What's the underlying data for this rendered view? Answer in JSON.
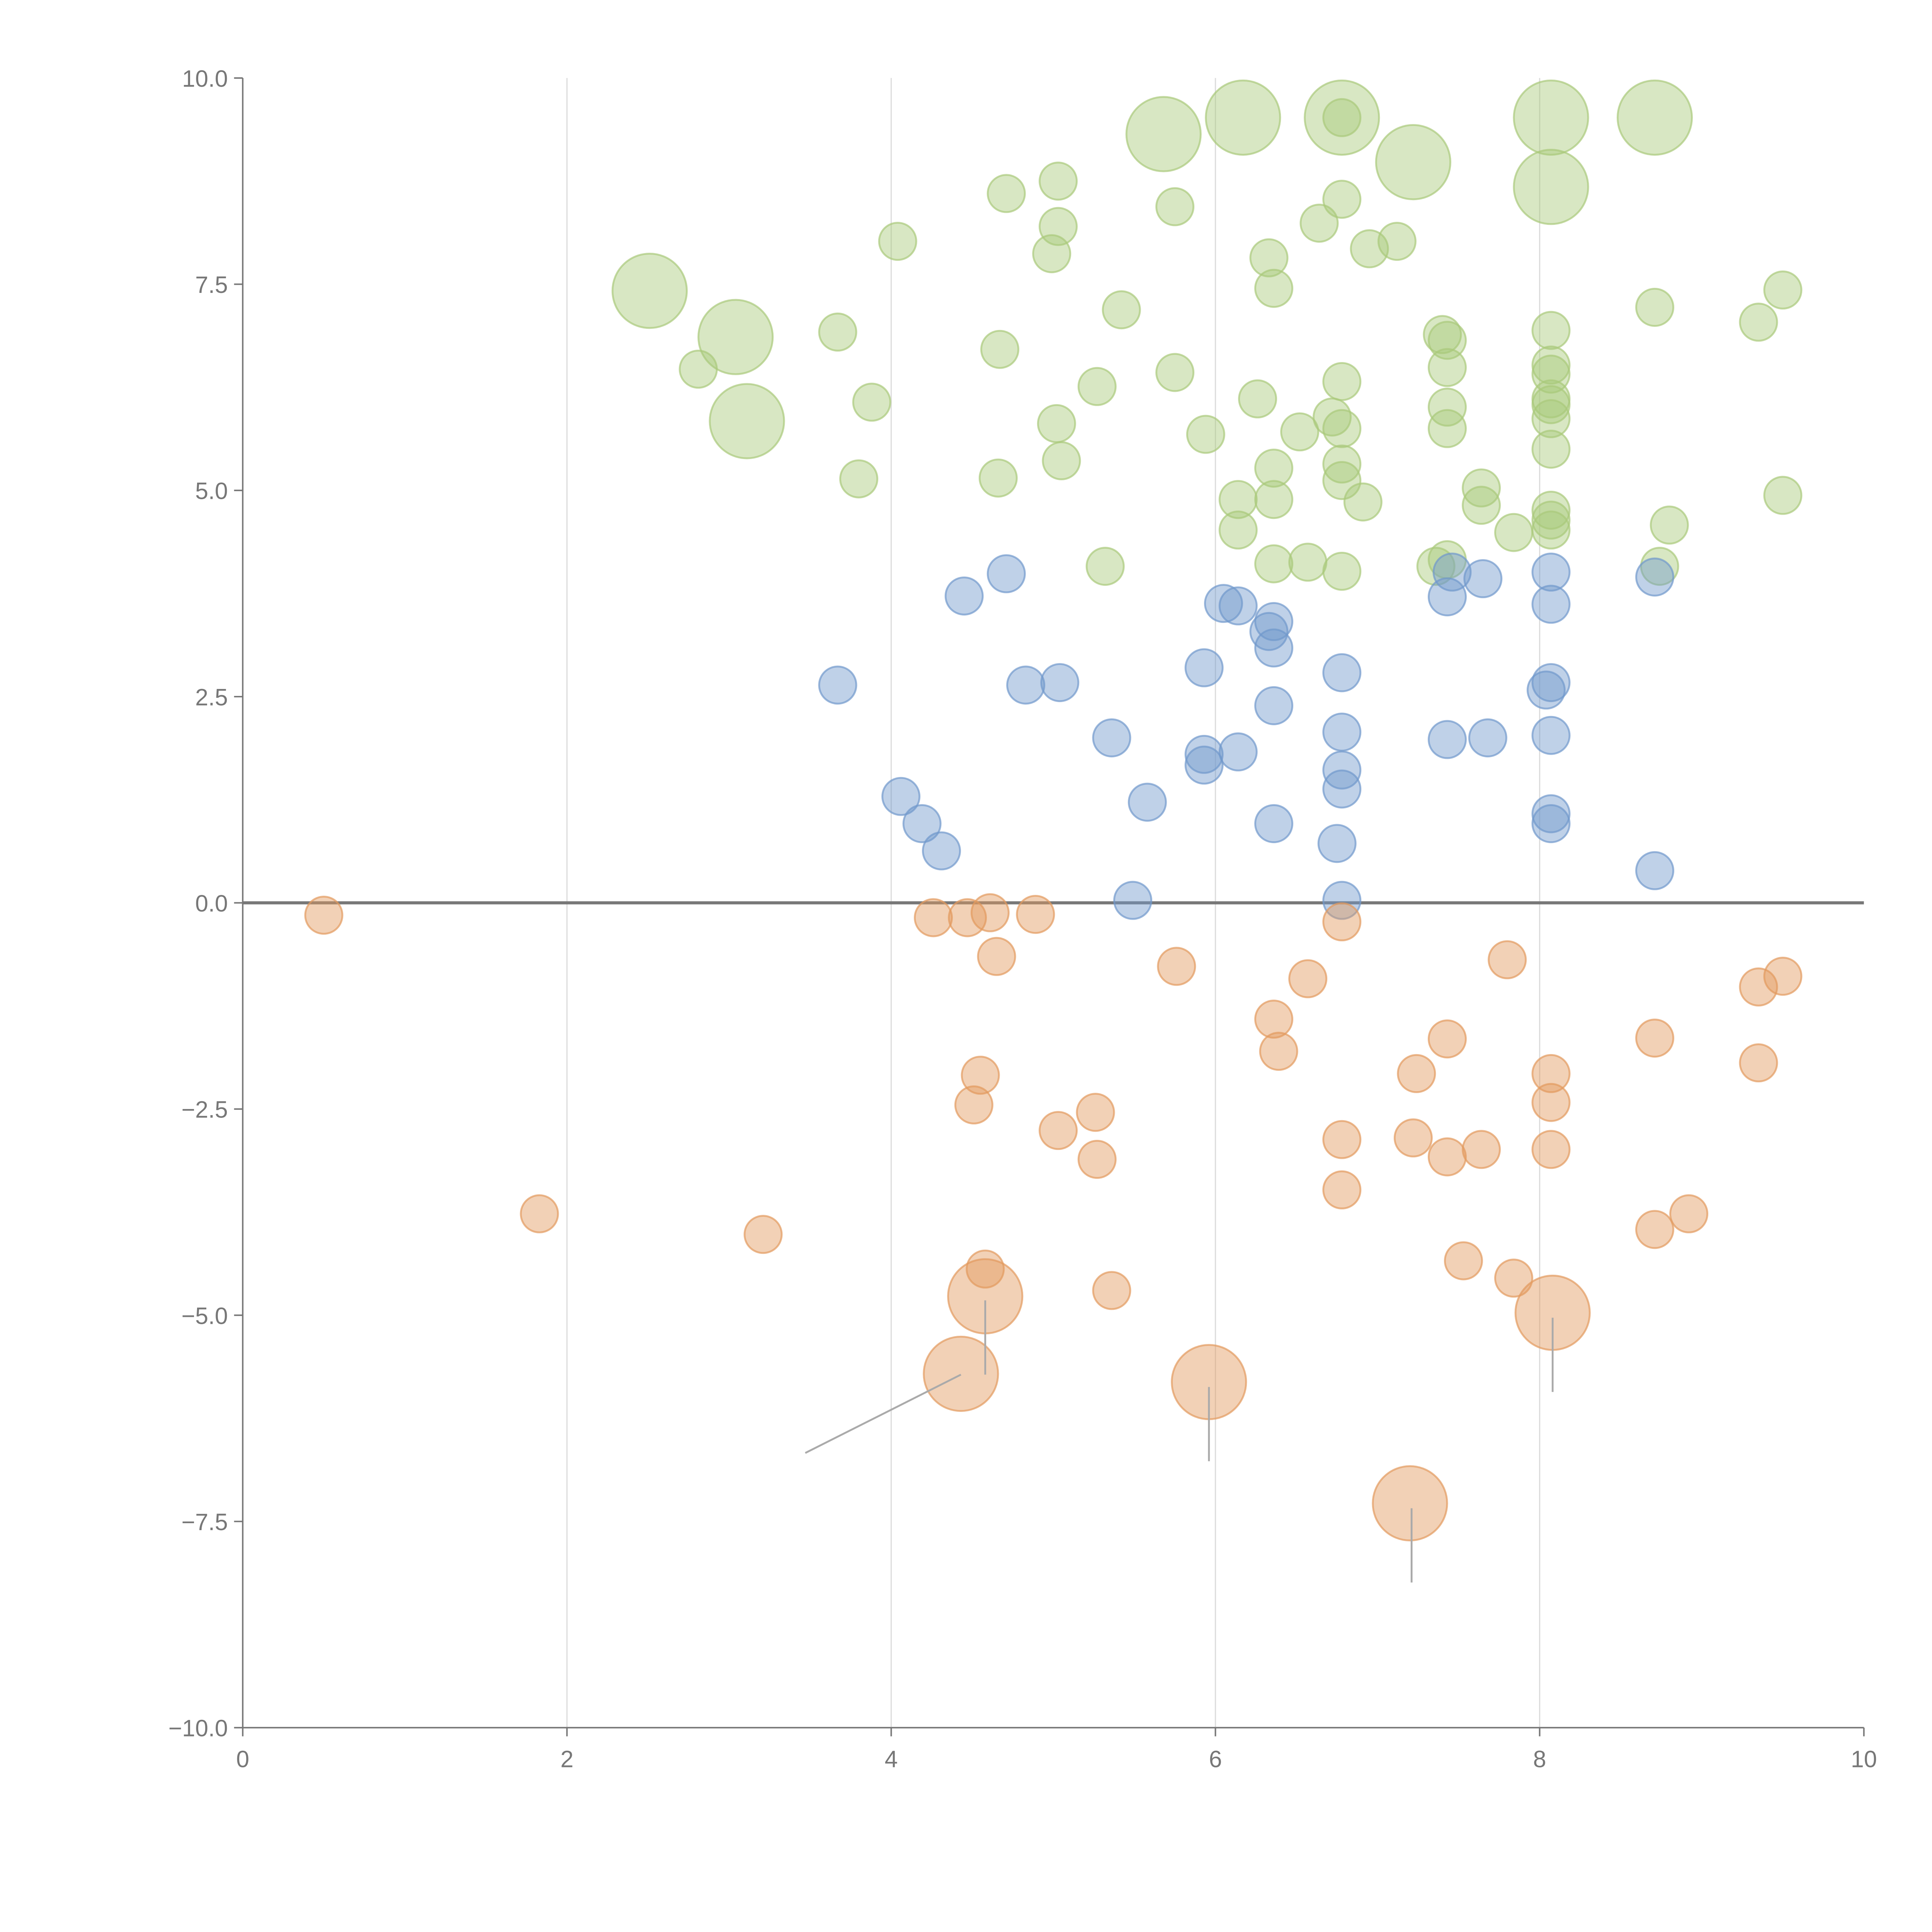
{
  "chart_data": {
    "type": "scatter",
    "title": "",
    "xlabel": "",
    "ylabel": "",
    "xlim": [
      0,
      10
    ],
    "ylim": [
      -10,
      10
    ],
    "grid": "vertical",
    "x_ticks": [
      0,
      2,
      4,
      6,
      8,
      10
    ],
    "x_tick_labels": [
      "0",
      "2",
      "4",
      "6",
      "8",
      "10"
    ],
    "y_ticks": [
      10,
      7.5,
      5,
      2.5,
      0,
      -2.5,
      -5,
      -7.5,
      -10
    ],
    "y_tick_labels": [
      "10.0",
      "7.5",
      "5.0",
      "2.5",
      "0.0",
      "−2.5",
      "−5.0",
      "−7.5",
      "−10.0"
    ],
    "reference_line_y": 0,
    "series": [
      {
        "color": "#a9c97a",
        "points": [
          [
            2.81,
            6.47
          ],
          [
            3.67,
            6.92
          ],
          [
            3.88,
            6.07
          ],
          [
            3.8,
            5.14
          ],
          [
            4.04,
            8.02
          ],
          [
            4.71,
            8.6
          ],
          [
            5.03,
            8.75
          ],
          [
            5.03,
            8.2
          ],
          [
            4.99,
            7.87
          ],
          [
            4.67,
            6.71
          ],
          [
            4.66,
            5.15
          ],
          [
            5.02,
            5.81
          ],
          [
            5.05,
            5.36
          ],
          [
            5.42,
            7.19
          ],
          [
            5.27,
            6.26
          ],
          [
            5.32,
            4.08
          ],
          [
            5.75,
            8.44
          ],
          [
            5.75,
            6.43
          ],
          [
            5.94,
            5.68
          ],
          [
            6.33,
            7.82
          ],
          [
            6.36,
            7.45
          ],
          [
            6.26,
            6.11
          ],
          [
            6.36,
            5.27
          ],
          [
            6.52,
            5.71
          ],
          [
            6.14,
            4.89
          ],
          [
            6.36,
            4.89
          ],
          [
            6.14,
            4.52
          ],
          [
            6.36,
            4.11
          ],
          [
            6.57,
            4.13
          ],
          [
            6.64,
            8.24
          ],
          [
            6.78,
            8.53
          ],
          [
            6.95,
            7.93
          ],
          [
            7.12,
            8.02
          ],
          [
            6.78,
            6.32
          ],
          [
            6.72,
            5.89
          ],
          [
            6.78,
            5.75
          ],
          [
            6.78,
            5.32
          ],
          [
            6.78,
            5.12
          ],
          [
            6.91,
            4.86
          ],
          [
            6.78,
            4.02
          ],
          [
            7.4,
            6.89
          ],
          [
            7.43,
            6.82
          ],
          [
            7.43,
            6.49
          ],
          [
            7.43,
            6.01
          ],
          [
            7.43,
            5.75
          ],
          [
            7.64,
            5.03
          ],
          [
            7.64,
            4.82
          ],
          [
            7.84,
            4.49
          ],
          [
            7.36,
            4.08
          ],
          [
            7.43,
            4.16
          ],
          [
            8.07,
            6.94
          ],
          [
            8.07,
            6.52
          ],
          [
            8.07,
            6.41
          ],
          [
            8.07,
            6.11
          ],
          [
            8.07,
            6.04
          ],
          [
            8.07,
            5.87
          ],
          [
            8.07,
            5.5
          ],
          [
            8.07,
            4.76
          ],
          [
            8.07,
            4.64
          ],
          [
            8.07,
            4.52
          ],
          [
            8.71,
            7.22
          ],
          [
            9.35,
            7.04
          ],
          [
            9.5,
            7.43
          ],
          [
            9.5,
            4.94
          ],
          [
            8.8,
            4.58
          ],
          [
            8.74,
            4.08
          ],
          [
            6.78,
            9.52
          ]
        ],
        "large_points": [
          [
            2.51,
            7.42
          ],
          [
            3.04,
            6.86
          ],
          [
            3.11,
            5.84
          ],
          [
            5.68,
            9.32
          ],
          [
            6.17,
            9.52
          ],
          [
            6.78,
            9.52
          ],
          [
            7.22,
            8.98
          ],
          [
            8.07,
            9.52
          ],
          [
            8.07,
            8.68
          ],
          [
            8.71,
            9.52
          ]
        ]
      },
      {
        "color": "#7098cc",
        "points": [
          [
            3.67,
            2.64
          ],
          [
            4.45,
            3.72
          ],
          [
            4.71,
            3.99
          ],
          [
            4.83,
            2.64
          ],
          [
            5.04,
            2.67
          ],
          [
            5.36,
            2.0
          ],
          [
            4.06,
            1.29
          ],
          [
            4.19,
            0.96
          ],
          [
            4.31,
            0.63
          ],
          [
            5.58,
            1.22
          ],
          [
            5.49,
            0.03
          ],
          [
            5.93,
            2.85
          ],
          [
            5.93,
            1.8
          ],
          [
            5.93,
            1.67
          ],
          [
            6.05,
            3.63
          ],
          [
            6.14,
            3.6
          ],
          [
            6.14,
            1.83
          ],
          [
            6.36,
            3.41
          ],
          [
            6.33,
            3.29
          ],
          [
            6.36,
            3.09
          ],
          [
            6.36,
            2.39
          ],
          [
            6.36,
            0.96
          ],
          [
            6.78,
            2.79
          ],
          [
            6.78,
            2.07
          ],
          [
            6.78,
            1.61
          ],
          [
            6.78,
            1.38
          ],
          [
            6.75,
            0.72
          ],
          [
            6.78,
            0.03
          ],
          [
            7.43,
            3.71
          ],
          [
            7.46,
            4.01
          ],
          [
            7.65,
            3.93
          ],
          [
            7.43,
            1.98
          ],
          [
            7.68,
            2.0
          ],
          [
            8.04,
            2.58
          ],
          [
            8.07,
            2.67
          ],
          [
            8.07,
            4.01
          ],
          [
            8.07,
            3.62
          ],
          [
            8.07,
            2.03
          ],
          [
            8.07,
            1.08
          ],
          [
            8.07,
            0.96
          ],
          [
            8.71,
            3.95
          ],
          [
            8.71,
            0.39
          ]
        ],
        "large_points": []
      },
      {
        "color": "#e29a5e",
        "points": [
          [
            0.5,
            -0.15
          ],
          [
            1.83,
            -3.77
          ],
          [
            3.21,
            -4.02
          ],
          [
            4.26,
            -0.18
          ],
          [
            4.47,
            -0.18
          ],
          [
            4.61,
            -0.12
          ],
          [
            4.89,
            -0.14
          ],
          [
            4.65,
            -0.65
          ],
          [
            4.55,
            -2.09
          ],
          [
            4.51,
            -2.45
          ],
          [
            5.03,
            -2.76
          ],
          [
            5.26,
            -2.54
          ],
          [
            5.27,
            -3.11
          ],
          [
            4.58,
            -4.44
          ],
          [
            5.36,
            -4.7
          ],
          [
            5.76,
            -0.77
          ],
          [
            6.57,
            -0.92
          ],
          [
            6.36,
            -1.41
          ],
          [
            6.39,
            -1.8
          ],
          [
            6.78,
            -0.23
          ],
          [
            6.78,
            -2.87
          ],
          [
            6.78,
            -3.48
          ],
          [
            7.24,
            -2.07
          ],
          [
            7.22,
            -2.85
          ],
          [
            7.43,
            -1.65
          ],
          [
            7.43,
            -3.08
          ],
          [
            7.64,
            -2.99
          ],
          [
            7.53,
            -4.34
          ],
          [
            7.84,
            -4.55
          ],
          [
            7.8,
            -0.69
          ],
          [
            8.07,
            -2.07
          ],
          [
            8.07,
            -2.42
          ],
          [
            8.07,
            -2.99
          ],
          [
            8.71,
            -1.64
          ],
          [
            9.35,
            -1.02
          ],
          [
            9.5,
            -0.89
          ],
          [
            9.35,
            -1.94
          ],
          [
            8.71,
            -3.96
          ],
          [
            8.92,
            -3.77
          ]
        ],
        "large_points": [
          [
            4.58,
            -4.77
          ],
          [
            4.43,
            -5.71
          ],
          [
            5.96,
            -5.81
          ],
          [
            8.08,
            -4.97
          ],
          [
            7.2,
            -7.28
          ]
        ]
      }
    ],
    "annotation_lines": [
      [
        [
          4.58,
          -4.82
        ],
        [
          4.58,
          -5.72
        ]
      ],
      [
        [
          4.43,
          -5.72
        ],
        [
          3.47,
          -6.67
        ]
      ],
      [
        [
          5.96,
          -5.87
        ],
        [
          5.96,
          -6.77
        ]
      ],
      [
        [
          8.08,
          -5.03
        ],
        [
          8.08,
          -5.93
        ]
      ],
      [
        [
          7.21,
          -7.34
        ],
        [
          7.21,
          -8.24
        ]
      ]
    ]
  }
}
